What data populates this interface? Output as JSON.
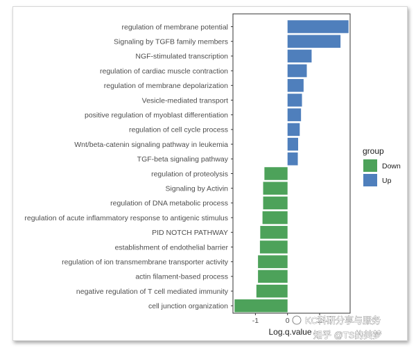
{
  "chart_data": {
    "type": "bar",
    "orientation": "horizontal",
    "xlabel": "Log.q.value",
    "xlim": [
      -1.7,
      1.95
    ],
    "xticks": [
      -1,
      0,
      1
    ],
    "grid": false,
    "legend": {
      "title": "group",
      "placement": "right",
      "entries": [
        {
          "name": "Down",
          "color": "#4DA25A"
        },
        {
          "name": "Up",
          "color": "#4F7FBC"
        }
      ]
    },
    "bars": [
      {
        "category": "regulation of membrane potential",
        "value": 1.9,
        "group": "Up"
      },
      {
        "category": "Signaling by TGFB family members",
        "value": 1.65,
        "group": "Up"
      },
      {
        "category": "NGF-stimulated transcription",
        "value": 0.75,
        "group": "Up"
      },
      {
        "category": "regulation of cardiac muscle contraction",
        "value": 0.6,
        "group": "Up"
      },
      {
        "category": "regulation of membrane depolarization",
        "value": 0.5,
        "group": "Up"
      },
      {
        "category": "Vesicle-mediated transport",
        "value": 0.45,
        "group": "Up"
      },
      {
        "category": "positive regulation of myoblast differentiation",
        "value": 0.42,
        "group": "Up"
      },
      {
        "category": "regulation of cell cycle process",
        "value": 0.38,
        "group": "Up"
      },
      {
        "category": "Wnt/beta-catenin signaling pathway in leukemia",
        "value": 0.33,
        "group": "Up"
      },
      {
        "category": "TGF-beta signaling pathway",
        "value": 0.32,
        "group": "Up"
      },
      {
        "category": "regulation of proteolysis",
        "value": -0.72,
        "group": "Down"
      },
      {
        "category": "Signaling by Activin",
        "value": -0.76,
        "group": "Down"
      },
      {
        "category": "regulation of DNA metabolic process",
        "value": -0.76,
        "group": "Down"
      },
      {
        "category": "regulation of acute inflammatory response to antigenic stimulus",
        "value": -0.78,
        "group": "Down"
      },
      {
        "category": "PID NOTCH PATHWAY",
        "value": -0.85,
        "group": "Down"
      },
      {
        "category": "establishment of endothelial barrier",
        "value": -0.86,
        "group": "Down"
      },
      {
        "category": "regulation of ion transmembrane transporter activity",
        "value": -0.92,
        "group": "Down"
      },
      {
        "category": "actin filament-based process",
        "value": -0.92,
        "group": "Down"
      },
      {
        "category": "negative regulation of T cell mediated immunity",
        "value": -0.97,
        "group": "Down"
      },
      {
        "category": "cell junction organization",
        "value": -1.65,
        "group": "Down"
      }
    ]
  },
  "watermark": {
    "line1": "KC科研分享与服务",
    "line2": "知乎 @TS的美梦"
  }
}
